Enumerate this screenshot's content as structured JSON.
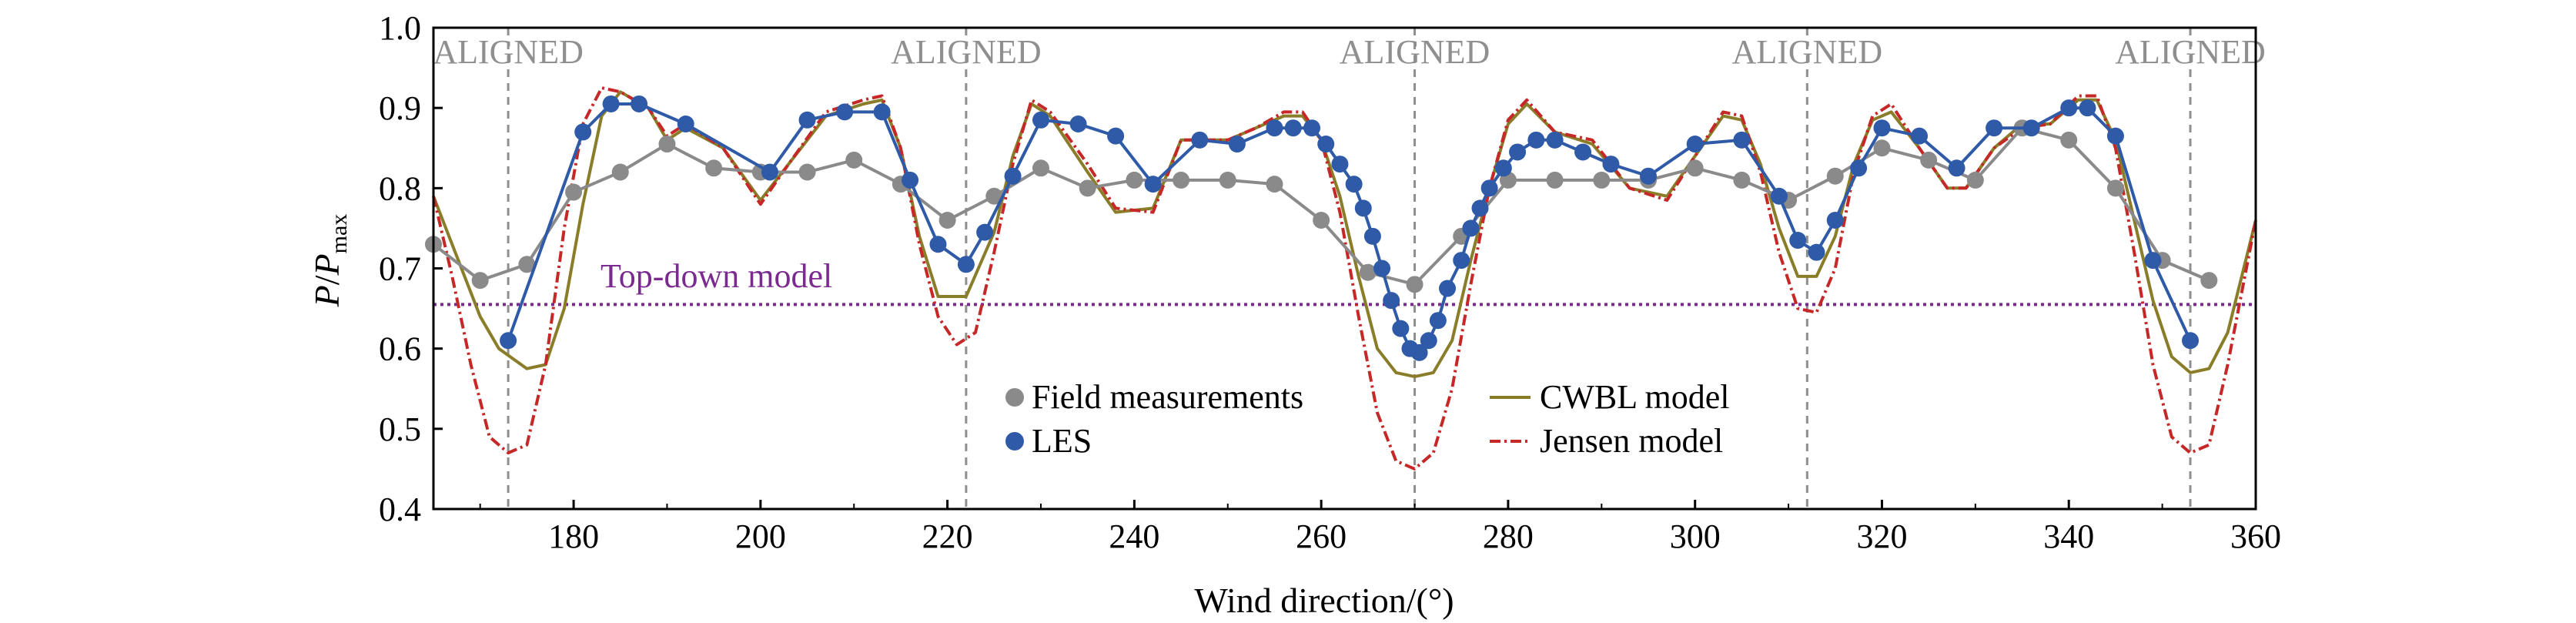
{
  "chart_data": {
    "type": "line",
    "title": "",
    "xlabel": "Wind direction/(°)",
    "ylabel": {
      "main": "P",
      "slash": "/",
      "denom": "P",
      "sub": "max"
    },
    "xlim": [
      165,
      360
    ],
    "ylim": [
      0.4,
      1.0
    ],
    "xticks": [
      180,
      200,
      220,
      240,
      260,
      280,
      300,
      320,
      340,
      360
    ],
    "yticks": [
      "0.4",
      "0.5",
      "0.6",
      "0.7",
      "0.8",
      "0.9",
      "1.0"
    ],
    "aligned": {
      "label": "ALIGNED",
      "directions": [
        173,
        222,
        270,
        312,
        353
      ]
    },
    "top_down": {
      "label": "Top-down model",
      "value": 0.655
    },
    "legend": {
      "field": "Field measurements",
      "les": "LES",
      "cwbl": "CWBL model",
      "jensen": "Jensen model"
    },
    "colors": {
      "field": "#8a8a8a",
      "les": "#2e5aa8",
      "cwbl": "#8a7d2a",
      "jensen": "#c62828",
      "topdown": "#7b2a8f",
      "aligned": "#8f8f8f",
      "axis": "#000000"
    },
    "series": [
      {
        "name": "Field measurements",
        "style": "line-markers",
        "x": [
          165,
          170,
          175,
          180,
          185,
          190,
          195,
          200,
          205,
          210,
          215,
          220,
          225,
          230,
          235,
          240,
          245,
          250,
          255,
          260,
          265,
          270,
          275,
          280,
          285,
          290,
          295,
          300,
          305,
          310,
          315,
          320,
          325,
          330,
          335,
          340,
          345,
          350,
          355
        ],
        "y": [
          0.73,
          0.685,
          0.705,
          0.795,
          0.82,
          0.855,
          0.825,
          0.82,
          0.82,
          0.835,
          0.805,
          0.76,
          0.79,
          0.825,
          0.8,
          0.81,
          0.81,
          0.81,
          0.805,
          0.76,
          0.695,
          0.68,
          0.74,
          0.81,
          0.81,
          0.81,
          0.81,
          0.825,
          0.81,
          0.785,
          0.815,
          0.85,
          0.835,
          0.81,
          0.875,
          0.86,
          0.8,
          0.71,
          0.685
        ]
      },
      {
        "name": "LES",
        "style": "line-markers",
        "x": [
          173,
          181,
          184,
          187,
          192,
          201,
          205,
          209,
          213,
          216,
          219,
          222,
          224,
          227,
          230,
          234,
          238,
          242,
          247,
          251,
          255,
          257,
          259,
          260.5,
          262,
          263.5,
          264.5,
          265.5,
          266.5,
          267.5,
          268.5,
          269.5,
          270.5,
          271.5,
          272.5,
          273.5,
          275,
          276,
          277,
          278,
          279.5,
          281,
          283,
          285,
          288,
          291,
          295,
          300,
          305,
          309,
          311,
          313,
          315,
          317.5,
          320,
          324,
          328,
          332,
          336,
          340,
          342,
          345,
          349,
          353
        ],
        "y": [
          0.61,
          0.87,
          0.905,
          0.905,
          0.88,
          0.82,
          0.885,
          0.895,
          0.895,
          0.81,
          0.73,
          0.705,
          0.745,
          0.815,
          0.885,
          0.88,
          0.865,
          0.805,
          0.86,
          0.855,
          0.875,
          0.875,
          0.875,
          0.855,
          0.83,
          0.805,
          0.775,
          0.74,
          0.7,
          0.66,
          0.625,
          0.6,
          0.595,
          0.61,
          0.635,
          0.675,
          0.71,
          0.75,
          0.775,
          0.8,
          0.825,
          0.845,
          0.86,
          0.86,
          0.845,
          0.83,
          0.815,
          0.855,
          0.86,
          0.79,
          0.735,
          0.72,
          0.76,
          0.825,
          0.875,
          0.865,
          0.825,
          0.875,
          0.875,
          0.9,
          0.9,
          0.865,
          0.71,
          0.61
        ]
      },
      {
        "name": "CWBL model",
        "style": "line",
        "x": [
          165,
          168,
          170,
          172,
          175,
          177,
          179,
          181,
          183,
          185,
          188,
          190,
          192,
          196,
          200,
          203,
          207,
          211,
          213,
          215,
          217,
          219,
          222,
          225,
          227,
          229,
          231,
          235,
          238,
          242,
          245,
          250,
          253,
          256,
          258,
          260,
          262,
          264,
          266,
          268,
          270,
          272,
          274,
          276,
          278,
          280,
          282,
          285,
          289,
          293,
          297,
          300,
          303,
          305,
          307,
          309,
          311,
          313,
          315,
          317,
          319,
          321,
          324,
          327,
          329,
          332,
          335,
          338,
          341,
          343,
          345,
          347,
          349,
          351,
          353,
          355,
          357,
          360
        ],
        "y": [
          0.79,
          0.7,
          0.64,
          0.6,
          0.575,
          0.58,
          0.65,
          0.78,
          0.89,
          0.92,
          0.9,
          0.86,
          0.875,
          0.85,
          0.785,
          0.83,
          0.89,
          0.905,
          0.91,
          0.85,
          0.74,
          0.665,
          0.665,
          0.745,
          0.84,
          0.905,
          0.89,
          0.82,
          0.77,
          0.775,
          0.86,
          0.86,
          0.875,
          0.89,
          0.89,
          0.86,
          0.79,
          0.69,
          0.6,
          0.57,
          0.565,
          0.57,
          0.61,
          0.71,
          0.8,
          0.88,
          0.905,
          0.87,
          0.855,
          0.8,
          0.79,
          0.84,
          0.89,
          0.885,
          0.83,
          0.75,
          0.69,
          0.69,
          0.74,
          0.83,
          0.885,
          0.895,
          0.85,
          0.8,
          0.8,
          0.85,
          0.88,
          0.88,
          0.91,
          0.91,
          0.86,
          0.76,
          0.66,
          0.59,
          0.57,
          0.575,
          0.62,
          0.76
        ]
      },
      {
        "name": "Jensen model",
        "style": "dashdot",
        "x": [
          165,
          167,
          169,
          171,
          173,
          175,
          177,
          179,
          181,
          183,
          185,
          188,
          190,
          192,
          196,
          200,
          203,
          207,
          211,
          213,
          215,
          217,
          219,
          221,
          223,
          225,
          227,
          229,
          231,
          235,
          238,
          242,
          245,
          250,
          253,
          256,
          258,
          260,
          262,
          264,
          266,
          268,
          270,
          272,
          274,
          276,
          278,
          280,
          282,
          285,
          289,
          293,
          297,
          300,
          303,
          305,
          307,
          309,
          311,
          313,
          315,
          317,
          319,
          321,
          324,
          327,
          329,
          332,
          335,
          338,
          341,
          343,
          345,
          347,
          349,
          351,
          353,
          355,
          357,
          360
        ],
        "y": [
          0.79,
          0.69,
          0.58,
          0.49,
          0.47,
          0.48,
          0.58,
          0.75,
          0.88,
          0.925,
          0.92,
          0.9,
          0.865,
          0.88,
          0.85,
          0.78,
          0.83,
          0.895,
          0.91,
          0.915,
          0.85,
          0.73,
          0.64,
          0.605,
          0.62,
          0.72,
          0.83,
          0.91,
          0.895,
          0.83,
          0.775,
          0.77,
          0.86,
          0.86,
          0.875,
          0.895,
          0.895,
          0.86,
          0.77,
          0.64,
          0.52,
          0.46,
          0.45,
          0.47,
          0.55,
          0.68,
          0.8,
          0.885,
          0.91,
          0.87,
          0.86,
          0.8,
          0.785,
          0.84,
          0.895,
          0.89,
          0.82,
          0.72,
          0.65,
          0.645,
          0.7,
          0.82,
          0.89,
          0.905,
          0.85,
          0.8,
          0.8,
          0.85,
          0.875,
          0.88,
          0.915,
          0.915,
          0.85,
          0.72,
          0.58,
          0.49,
          0.47,
          0.48,
          0.58,
          0.76
        ]
      }
    ]
  }
}
